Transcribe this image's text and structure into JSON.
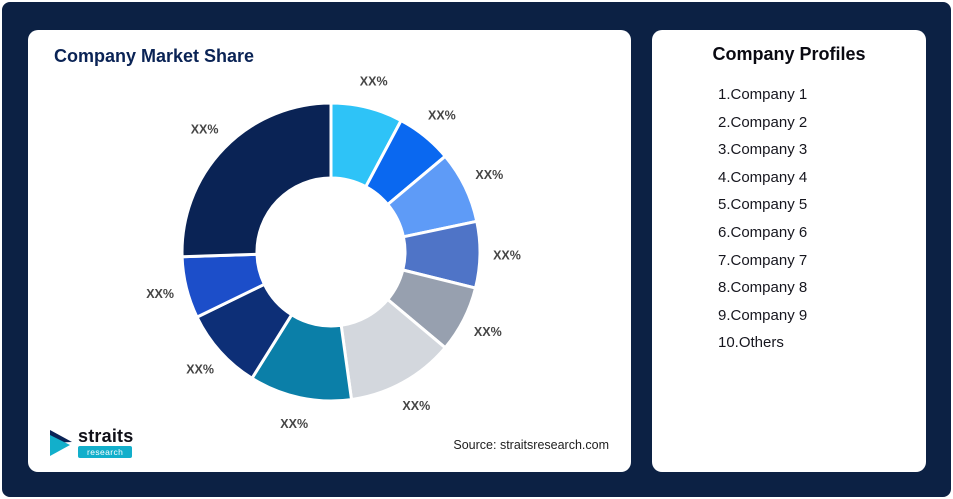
{
  "colors": {
    "background": "#0C2144",
    "navy": "#0A2355",
    "accent_teal": "#12AFCB",
    "label_gray": "#454545",
    "card": "#FFFFFF",
    "text_dark": "#16161E"
  },
  "left_card": {
    "title": "Company Market Share",
    "source": "Source: straitsresearch.com",
    "logo": {
      "name": "straits",
      "sub": "research"
    }
  },
  "right_card": {
    "title": "Company Profiles",
    "items": [
      "1.Company 1",
      "2.Company 2",
      "3.Company 3",
      "4.Company 4",
      "5.Company 5",
      "6.Company 6",
      "7.Company 7",
      "8.Company 8",
      "9.Company 9",
      "10.Others"
    ]
  },
  "chart_data": {
    "type": "pie",
    "donut": true,
    "title": "Company Market Share",
    "labels": [
      "XX%",
      "XX%",
      "XX%",
      "XX%",
      "XX%",
      "XX%",
      "XX%",
      "XX%",
      "XX%",
      "XX%"
    ],
    "values": [
      7.8,
      6.1,
      7.8,
      7.2,
      7.2,
      11.7,
      11.1,
      8.9,
      6.7,
      25.5
    ],
    "colors": [
      "#2EC3F7",
      "#0A68F0",
      "#5E9BF7",
      "#4F74C7",
      "#97A0AF",
      "#D3D7DD",
      "#0B7FA8",
      "#0D2F77",
      "#1C4EC9",
      "#0A2355"
    ],
    "start_angle_deg": 0,
    "direction": "clockwise",
    "legend_position": "none",
    "source": "Source: straitsresearch.com"
  }
}
